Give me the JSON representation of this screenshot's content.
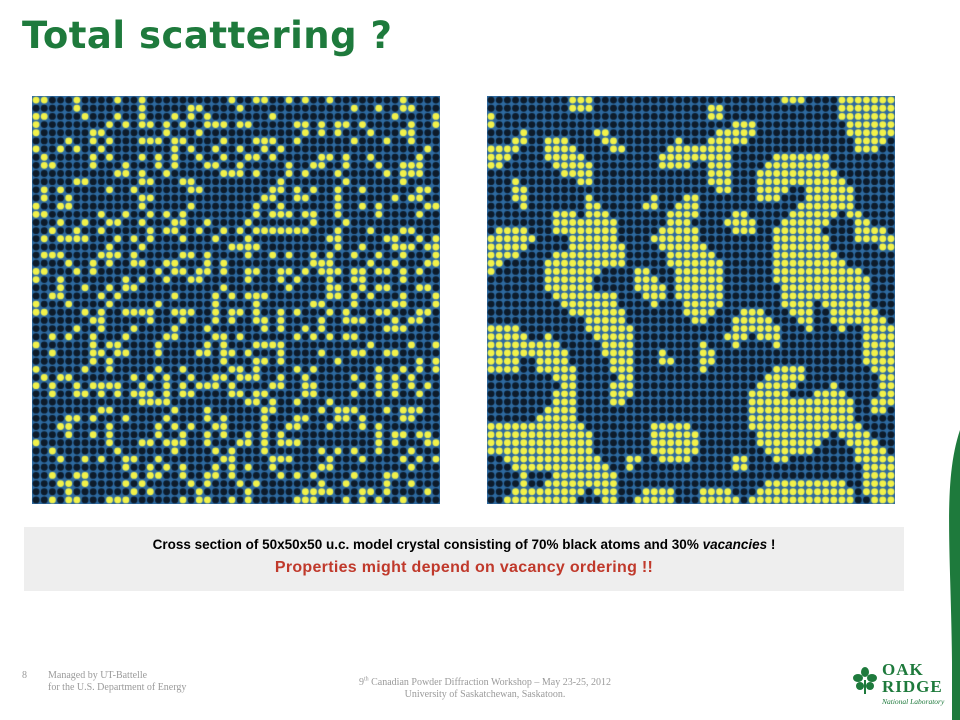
{
  "slide": {
    "title": "Total scattering ?",
    "caption": {
      "line1_before": "Cross section of 50x50x50 u.c. model crystal consisting of 70% black atoms and 30% ",
      "line1_italic": "vacancies",
      "line1_after": " !",
      "line2": "Properties might depend on vacancy ordering !!"
    },
    "footer": {
      "page_number": "8",
      "managed_line1": "Managed by UT-Battelle",
      "managed_line2": "for the U.S. Department of Energy",
      "workshop_prefix": "9",
      "workshop_sup": "th",
      "workshop_rest": " Canadian Powder Diffraction Workshop – May 23-25, 2012",
      "university": "University of Saskatchewan, Saskatoon."
    },
    "logo": {
      "line1": "OAK",
      "line2": "RIDGE",
      "line3": "National Laboratory"
    }
  },
  "colors": {
    "title": "#1e7a3c",
    "panel_background": "#2e6aa0",
    "atom": "#0d1b2a",
    "vacancy": "#f2f24a",
    "highlight": "#c0392b",
    "brand_green": "#1e7a3c"
  },
  "model": {
    "grid_size": 50,
    "vacancy_fraction": 0.3,
    "left_ordering": "random",
    "right_ordering": "clustered"
  }
}
